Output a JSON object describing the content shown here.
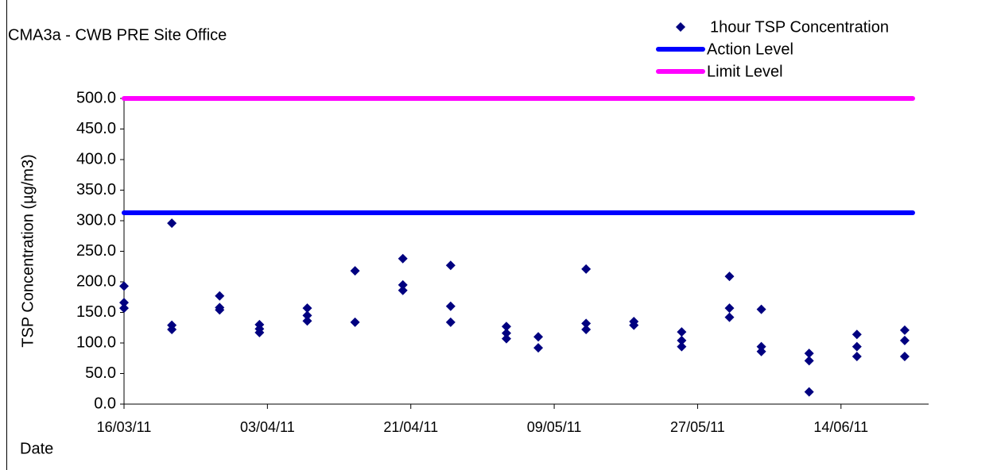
{
  "chart_data": {
    "type": "scatter",
    "title": "CMA3a - CWB PRE Site Office",
    "y_label": "TSP Concentration (µg/m3)",
    "x_label": "Date",
    "xlim": [
      "2011-03-16",
      "2011-06-25"
    ],
    "xticks": [
      {
        "value": "2011-03-16",
        "label": "16/03/11"
      },
      {
        "value": "2011-04-03",
        "label": "03/04/11"
      },
      {
        "value": "2011-04-21",
        "label": "21/04/11"
      },
      {
        "value": "2011-05-09",
        "label": "09/05/11"
      },
      {
        "value": "2011-05-27",
        "label": "27/05/11"
      },
      {
        "value": "2011-06-14",
        "label": "14/06/11"
      }
    ],
    "ylim": [
      0,
      500
    ],
    "yticks": [
      {
        "value": 0,
        "label": "0.0"
      },
      {
        "value": 50,
        "label": "50.0"
      },
      {
        "value": 100,
        "label": "100.0"
      },
      {
        "value": 150,
        "label": "150.0"
      },
      {
        "value": 200,
        "label": "200.0"
      },
      {
        "value": 250,
        "label": "250.0"
      },
      {
        "value": 300,
        "label": "300.0"
      },
      {
        "value": 350,
        "label": "350.0"
      },
      {
        "value": 400,
        "label": "400.0"
      },
      {
        "value": 450,
        "label": "450.0"
      },
      {
        "value": 500,
        "label": "500.0"
      }
    ],
    "series": [
      {
        "name": "1hour TSP Concentration",
        "mode": "markers",
        "color": "#000080",
        "x": [
          "2011-03-16",
          "2011-03-16",
          "2011-03-16",
          "2011-03-22",
          "2011-03-22",
          "2011-03-22",
          "2011-03-28",
          "2011-03-28",
          "2011-03-28",
          "2011-04-02",
          "2011-04-02",
          "2011-04-02",
          "2011-04-08",
          "2011-04-08",
          "2011-04-08",
          "2011-04-14",
          "2011-04-14",
          "2011-04-20",
          "2011-04-20",
          "2011-04-20",
          "2011-04-26",
          "2011-04-26",
          "2011-04-26",
          "2011-05-03",
          "2011-05-03",
          "2011-05-03",
          "2011-05-07",
          "2011-05-07",
          "2011-05-13",
          "2011-05-13",
          "2011-05-13",
          "2011-05-19",
          "2011-05-19",
          "2011-05-25",
          "2011-05-25",
          "2011-05-25",
          "2011-05-31",
          "2011-05-31",
          "2011-05-31",
          "2011-06-04",
          "2011-06-04",
          "2011-06-04",
          "2011-06-10",
          "2011-06-10",
          "2011-06-10",
          "2011-06-16",
          "2011-06-16",
          "2011-06-16",
          "2011-06-22",
          "2011-06-22",
          "2011-06-22"
        ],
        "values": [
          193,
          166,
          157,
          296,
          129,
          122,
          177,
          158,
          154,
          130,
          123,
          117,
          157,
          145,
          136,
          218,
          134,
          238,
          195,
          186,
          227,
          160,
          134,
          127,
          116,
          107,
          110,
          92,
          221,
          132,
          122,
          135,
          129,
          118,
          104,
          94,
          209,
          157,
          142,
          155,
          94,
          86,
          83,
          71,
          20,
          114,
          94,
          78,
          121,
          104,
          78
        ]
      },
      {
        "name": "Action Level",
        "mode": "line",
        "color": "#0000ff",
        "x": [
          "2011-03-16",
          "2011-06-23"
        ],
        "values": [
          313,
          313
        ]
      },
      {
        "name": "Limit Level",
        "mode": "line",
        "color": "#ff00ff",
        "x": [
          "2011-03-16",
          "2011-06-23"
        ],
        "values": [
          500,
          500
        ]
      }
    ]
  }
}
